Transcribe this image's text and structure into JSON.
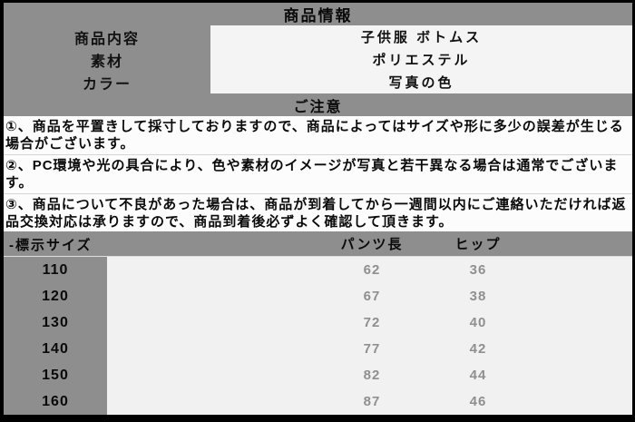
{
  "product_info": {
    "title": "商品情報",
    "rows": [
      {
        "label": "商品内容",
        "value": "子供服 ボトムス"
      },
      {
        "label": "素材",
        "value": "ポリエステル"
      },
      {
        "label": "カラー",
        "value": "写真の色"
      }
    ]
  },
  "notice": {
    "title": "ご注意",
    "items": [
      "①、商品を平置きして採寸しておりますので、商品によってはサイズや形に多少の誤差が生じる場合がございます。",
      "②、PC環境や光の具合により、色や素材のイメージが写真と若干異なる場合は通常でございます。",
      "③、商品について不良があった場合は、商品が到着してから一週間以内にご連絡いただければ返品交換対応は承りますので、商品到着後必ずよく確認して頂きます。"
    ]
  },
  "size_table": {
    "headers": {
      "size": "-標示サイズ",
      "pants_length": "パンツ長",
      "hip": "ヒップ"
    },
    "rows": [
      {
        "size": "110",
        "pants_length": "62",
        "hip": "36"
      },
      {
        "size": "120",
        "pants_length": "67",
        "hip": "38"
      },
      {
        "size": "130",
        "pants_length": "72",
        "hip": "40"
      },
      {
        "size": "140",
        "pants_length": "77",
        "hip": "42"
      },
      {
        "size": "150",
        "pants_length": "82",
        "hip": "44"
      },
      {
        "size": "160",
        "pants_length": "87",
        "hip": "46"
      }
    ]
  },
  "colors": {
    "panel_gray": "#8e8e8e",
    "border_black": "#000000",
    "values_box_bg": "#f4f4f4",
    "notice_bg": "#fcfcfc",
    "table_light_bg": "#f1f1f1",
    "table_value_gray": "#8f8f8f",
    "text_black": "#0a0a0a"
  }
}
